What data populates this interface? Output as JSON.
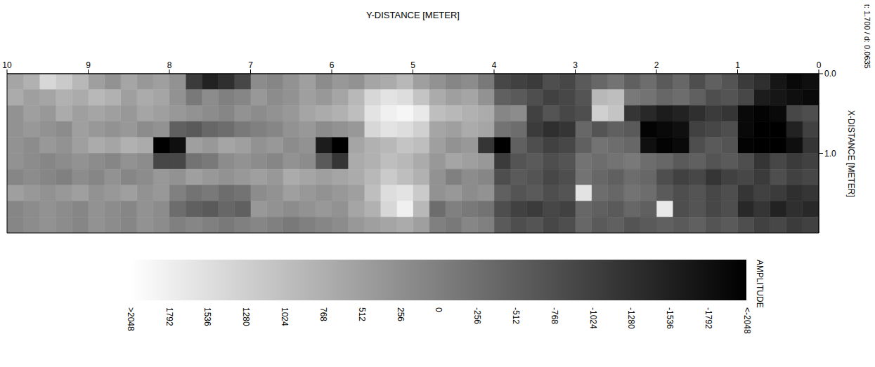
{
  "chart_data": {
    "type": "heatmap",
    "xlabel": "Y-DISTANCE [METER]",
    "ylabel": "X-DISTANCE [METER]",
    "annotations": [
      "t: 1.700 / d: 0.0635"
    ],
    "xlim": [
      10,
      0
    ],
    "xticks": [
      10,
      9,
      8,
      7,
      6,
      5,
      4,
      3,
      2,
      1,
      0
    ],
    "ylim": [
      2,
      0
    ],
    "yticks": [
      {
        "value": 0,
        "label": "0.0"
      },
      {
        "value": 1,
        "label": "1.0"
      }
    ],
    "grid": false,
    "x_edges": [
      0,
      0.2,
      0.4,
      0.6,
      0.8,
      1,
      1.2,
      1.4,
      1.6,
      1.8,
      2,
      2.2,
      2.4,
      2.6,
      2.8,
      3,
      3.2,
      3.4,
      3.6,
      3.8,
      4,
      4.2,
      4.4,
      4.6,
      4.8,
      5,
      5.2,
      5.4,
      5.6,
      5.8,
      6,
      6.2,
      6.4,
      6.6,
      6.8,
      7,
      7.2,
      7.4,
      7.6,
      7.8,
      8,
      8.2,
      8.4,
      8.6,
      8.8,
      9,
      9.2,
      9.4,
      9.6,
      9.8,
      10
    ],
    "y_edges": [
      0,
      0.2,
      0.4,
      0.6,
      0.8,
      1,
      1.2,
      1.4,
      1.6,
      1.8,
      2
    ],
    "cells": [
      [
        -1800,
        -1900,
        -1700,
        -1300,
        -1100,
        -700,
        -500,
        -800,
        -400,
        -600,
        -300,
        -500,
        -200,
        -400,
        -600,
        -900,
        -800,
        -1100,
        -1000,
        -900,
        -100,
        200,
        100,
        300,
        500,
        900,
        700,
        600,
        300,
        400,
        200,
        500,
        300,
        100,
        200,
        -900,
        -1300,
        -1500,
        -1100,
        300,
        500,
        400,
        600,
        300,
        500,
        900,
        1200,
        1400,
        800,
        600
      ],
      [
        -1900,
        -1800,
        -1700,
        -1600,
        -900,
        -700,
        -800,
        -500,
        -300,
        -400,
        -200,
        -100,
        1000,
        900,
        -700,
        -900,
        -1000,
        -800,
        -600,
        -500,
        300,
        600,
        500,
        700,
        1100,
        1500,
        1600,
        1400,
        900,
        600,
        400,
        500,
        300,
        200,
        400,
        100,
        0,
        200,
        -100,
        300,
        600,
        700,
        500,
        800,
        900,
        700,
        800,
        600,
        500,
        700
      ],
      [
        -800,
        -900,
        -1900,
        -2000,
        -1900,
        -1200,
        -1100,
        -1300,
        -1500,
        -1600,
        -1400,
        -1200,
        1100,
        1300,
        -800,
        -900,
        -700,
        -1000,
        200,
        100,
        700,
        800,
        900,
        1000,
        1700,
        1900,
        1800,
        1600,
        1000,
        800,
        700,
        600,
        400,
        300,
        200,
        300,
        100,
        200,
        300,
        400,
        500,
        600,
        400,
        500,
        600,
        500,
        700,
        400,
        500,
        300
      ],
      [
        -1000,
        -1500,
        -2048,
        -2048,
        -1900,
        -800,
        -900,
        -1000,
        -1800,
        -1900,
        -2000,
        -600,
        -500,
        -700,
        -400,
        -1200,
        -1300,
        -1100,
        -300,
        -200,
        600,
        700,
        500,
        600,
        1300,
        1500,
        1600,
        1400,
        400,
        300,
        200,
        400,
        300,
        100,
        0,
        -100,
        -300,
        -400,
        -600,
        -500,
        300,
        200,
        400,
        300,
        400,
        500,
        200,
        300,
        400,
        300
      ],
      [
        -1200,
        -1800,
        -2048,
        -2048,
        -2000,
        -700,
        -600,
        -800,
        -1900,
        -2000,
        -1800,
        -400,
        -300,
        -200,
        -500,
        -900,
        -1000,
        -800,
        -500,
        -2048,
        -1200,
        400,
        300,
        500,
        1000,
        1100,
        900,
        800,
        600,
        -2048,
        -1600,
        300,
        200,
        400,
        300,
        500,
        600,
        400,
        500,
        -1800,
        -2048,
        700,
        800,
        600,
        700,
        500,
        300,
        400,
        200,
        300
      ],
      [
        -1000,
        -1100,
        -900,
        -1200,
        -800,
        -600,
        -700,
        -500,
        -600,
        -400,
        -300,
        -100,
        -200,
        -300,
        -200,
        -700,
        -800,
        -600,
        -700,
        -1100,
        400,
        500,
        600,
        400,
        700,
        900,
        1000,
        800,
        700,
        -1200,
        -600,
        200,
        300,
        100,
        200,
        300,
        200,
        -100,
        -200,
        -900,
        -900,
        200,
        300,
        100,
        200,
        300,
        200,
        100,
        200,
        300
      ],
      [
        -900,
        -1000,
        -800,
        -1100,
        -900,
        -1000,
        -1200,
        -900,
        -1000,
        -800,
        -400,
        -300,
        -500,
        -400,
        -200,
        -800,
        -900,
        -700,
        -600,
        -800,
        100,
        200,
        0,
        300,
        800,
        1000,
        1200,
        900,
        700,
        600,
        500,
        600,
        700,
        400,
        500,
        400,
        300,
        400,
        500,
        300,
        400,
        200,
        100,
        300,
        100,
        200,
        0,
        100,
        200,
        100
      ],
      [
        -1200,
        -1300,
        -1100,
        -1000,
        -1200,
        -800,
        -900,
        -700,
        -800,
        -600,
        -300,
        -200,
        -400,
        -300,
        1600,
        -700,
        -800,
        -600,
        -700,
        -500,
        300,
        200,
        400,
        300,
        1200,
        1600,
        1500,
        1000,
        500,
        400,
        300,
        400,
        500,
        300,
        200,
        -200,
        -300,
        -100,
        -200,
        0,
        400,
        300,
        500,
        400,
        300,
        500,
        400,
        300,
        400,
        500
      ],
      [
        -1400,
        -1300,
        -1500,
        -1200,
        -1400,
        -800,
        -900,
        -700,
        -800,
        1700,
        -500,
        -400,
        -600,
        -500,
        -400,
        -1000,
        -900,
        -1100,
        -1000,
        -800,
        -200,
        -100,
        0,
        -300,
        900,
        1800,
        1400,
        800,
        600,
        300,
        400,
        300,
        200,
        300,
        400,
        -500,
        -400,
        -600,
        -500,
        -300,
        200,
        300,
        100,
        200,
        300,
        100,
        200,
        300,
        200,
        100
      ],
      [
        -1000,
        -1100,
        -900,
        -1000,
        -800,
        -600,
        -700,
        -500,
        -600,
        -500,
        -600,
        -700,
        -500,
        -600,
        -400,
        -800,
        -900,
        -700,
        -800,
        -600,
        0,
        100,
        -100,
        0,
        500,
        700,
        600,
        500,
        400,
        200,
        100,
        0,
        -100,
        0,
        100,
        0,
        -100,
        0,
        100,
        0,
        200,
        300,
        100,
        200,
        300,
        100,
        200,
        300,
        200,
        100
      ]
    ],
    "colorbar": {
      "title": "AMPLITUDE",
      "range": [
        -2048,
        2048
      ],
      "ticks": [
        {
          "value": 2048,
          "label": ">2048"
        },
        1792,
        1536,
        1280,
        1024,
        768,
        512,
        256,
        0,
        -256,
        -512,
        -768,
        -1024,
        -1280,
        -1536,
        -1792,
        {
          "value": -2048,
          "label": "<-2048"
        }
      ]
    }
  }
}
